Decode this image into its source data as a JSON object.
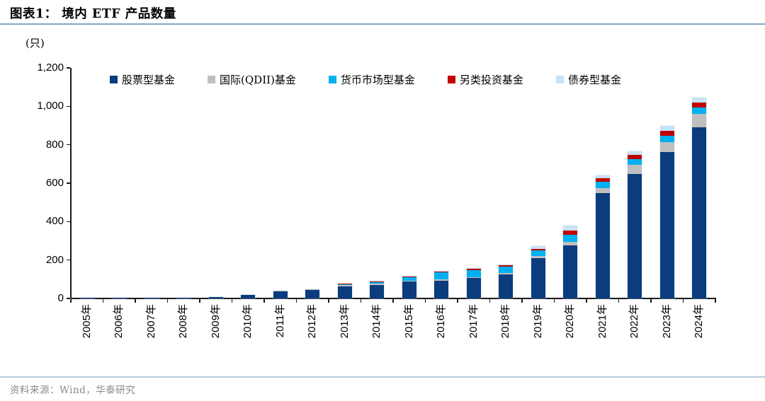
{
  "header": {
    "title": "图表1： 境内 ETF 产品数量"
  },
  "unit_label": "(只)",
  "source": {
    "text": "资料来源：Wind，华泰研究"
  },
  "colors": {
    "stock": "#0b3c7d",
    "qdii": "#bfbfbf",
    "money": "#00b0f0",
    "alt": "#c00000",
    "bond": "#c9e3f5",
    "axis": "#1a1a1a",
    "title_rule": "#84a7c8",
    "footer_rule": "#b8cbdb"
  },
  "chart_data": {
    "type": "bar",
    "stacked": true,
    "title": "境内 ETF 产品数量",
    "unit": "只",
    "grid": false,
    "legend_position": "top",
    "ylim": [
      0,
      1200
    ],
    "ytick_labels": [
      "1,200",
      "1,000",
      "800",
      "600",
      "400",
      "200",
      "0"
    ],
    "categories": [
      "2005年",
      "2006年",
      "2007年",
      "2008年",
      "2009年",
      "2010年",
      "2011年",
      "2012年",
      "2013年",
      "2014年",
      "2015年",
      "2016年",
      "2017年",
      "2018年",
      "2019年",
      "2020年",
      "2021年",
      "2022年",
      "2023年",
      "2024年"
    ],
    "series": [
      {
        "name": "股票型基金",
        "color": "#0b3c7d",
        "values": [
          1,
          3,
          5,
          5,
          9,
          20,
          37,
          44,
          62,
          71,
          87,
          93,
          106,
          126,
          208,
          277,
          549,
          649,
          762,
          891
        ]
      },
      {
        "name": "国际(QDII)基金",
        "color": "#bfbfbf",
        "values": [
          0,
          0,
          0,
          0,
          0,
          0,
          2,
          3,
          8,
          8,
          6,
          6,
          6,
          8,
          13,
          19,
          26,
          45,
          52,
          69
        ]
      },
      {
        "name": "货币市场型基金",
        "color": "#00b0f0",
        "values": [
          0,
          0,
          0,
          0,
          0,
          0,
          1,
          2,
          5,
          6,
          16,
          37,
          34,
          33,
          28,
          35,
          31,
          31,
          31,
          35
        ]
      },
      {
        "name": "另类投资基金",
        "color": "#c00000",
        "values": [
          0,
          0,
          0,
          0,
          0,
          0,
          0,
          0,
          2,
          5,
          5,
          5,
          7,
          7,
          10,
          22,
          18,
          22,
          27,
          24
        ]
      },
      {
        "name": "债券型基金",
        "color": "#c9e3f5",
        "values": [
          0,
          0,
          0,
          0,
          0,
          0,
          0,
          0,
          0,
          1,
          3,
          2,
          4,
          4,
          14,
          25,
          17,
          17,
          27,
          25
        ]
      }
    ],
    "totals": [
      1,
      3,
      5,
      5,
      9,
      20,
      40,
      49,
      77,
      91,
      117,
      143,
      157,
      178,
      273,
      378,
      641,
      764,
      899,
      1044
    ]
  }
}
